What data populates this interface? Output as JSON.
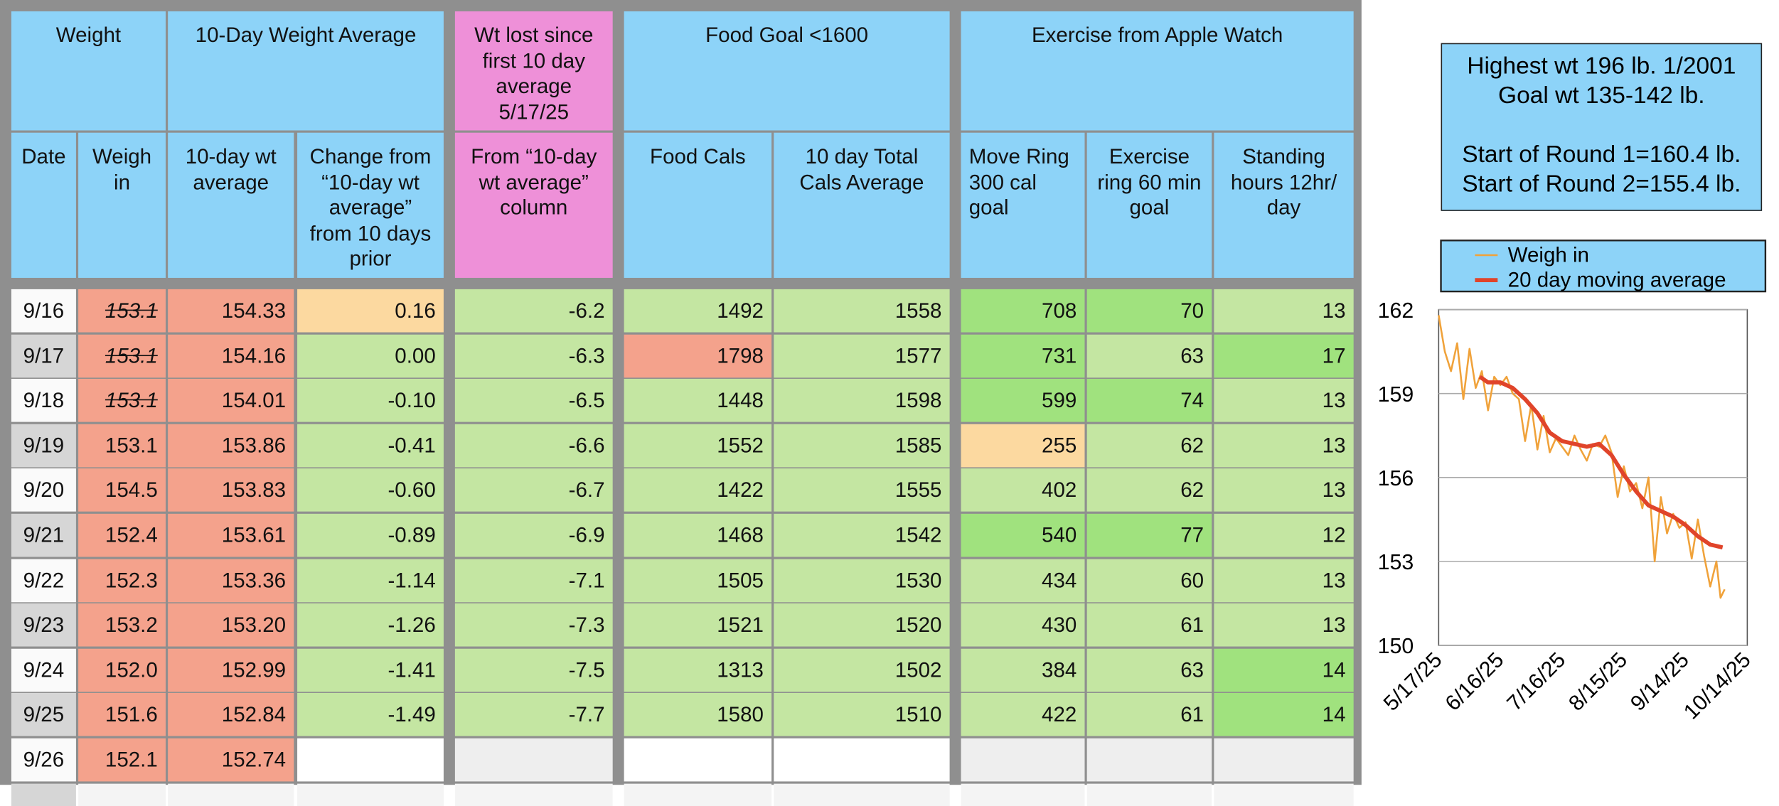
{
  "table": {
    "group_headers": [
      "Weight",
      "10-Day Weight Average",
      "Wt lost since first 10 day average 5/17/25",
      "Food Goal <1600",
      "Exercise from Apple Watch"
    ],
    "column_headers": [
      "Date",
      "Weigh in",
      "10-day wt average",
      "Change from “10-day wt average” from 10 days prior",
      "From “10-day wt average” column",
      "Food Cals",
      "10 day Total Cals Average",
      "Move Ring 300 cal goal",
      "Exercise ring 60 min goal",
      "Standing hours 12hr/ day"
    ],
    "rows": [
      [
        "9/16",
        "153.1",
        "154.33",
        "0.16",
        "-6.2",
        "1492",
        "1558",
        "708",
        "70",
        "13"
      ],
      [
        "9/17",
        "153.1",
        "154.16",
        "0.00",
        "-6.3",
        "1798",
        "1577",
        "731",
        "63",
        "17"
      ],
      [
        "9/18",
        "153.1",
        "154.01",
        "-0.10",
        "-6.5",
        "1448",
        "1598",
        "599",
        "74",
        "13"
      ],
      [
        "9/19",
        "153.1",
        "153.86",
        "-0.41",
        "-6.6",
        "1552",
        "1585",
        "255",
        "62",
        "13"
      ],
      [
        "9/20",
        "154.5",
        "153.83",
        "-0.60",
        "-6.7",
        "1422",
        "1555",
        "402",
        "62",
        "13"
      ],
      [
        "9/21",
        "152.4",
        "153.61",
        "-0.89",
        "-6.9",
        "1468",
        "1542",
        "540",
        "77",
        "12"
      ],
      [
        "9/22",
        "152.3",
        "153.36",
        "-1.14",
        "-7.1",
        "1505",
        "1530",
        "434",
        "60",
        "13"
      ],
      [
        "9/23",
        "153.2",
        "153.20",
        "-1.26",
        "-7.3",
        "1521",
        "1520",
        "430",
        "61",
        "13"
      ],
      [
        "9/24",
        "152.0",
        "152.99",
        "-1.41",
        "-7.5",
        "1313",
        "1502",
        "384",
        "63",
        "14"
      ],
      [
        "9/25",
        "151.6",
        "152.84",
        "-1.49",
        "-7.7",
        "1580",
        "1510",
        "422",
        "61",
        "14"
      ],
      [
        "9/26",
        "152.1",
        "152.74"
      ]
    ]
  },
  "info_box": {
    "lines": [
      "Highest wt 196 lb.  1/2001",
      "Goal wt 135-142 lb.",
      "Start of Round 1=160.4 lb.",
      "Start of Round 2=155.4 lb."
    ]
  },
  "chart_data": {
    "type": "line",
    "legend": "top",
    "grid": true,
    "xlim": [
      "5/17/25",
      "10/14/25"
    ],
    "xticks": [
      "5/17/25",
      "6/16/25",
      "7/16/25",
      "8/15/25",
      "9/14/25",
      "10/14/25"
    ],
    "ylim": [
      150,
      162
    ],
    "yticks": [
      150,
      153,
      156,
      159,
      162
    ],
    "series": [
      {
        "name": "Weigh in",
        "color": "#f0a23a",
        "x": [
          "5/17/25",
          "5/20/25",
          "5/23/25",
          "5/26/25",
          "5/29/25",
          "6/1/25",
          "6/4/25",
          "6/7/25",
          "6/10/25",
          "6/13/25",
          "6/16/25",
          "6/19/25",
          "6/22/25",
          "6/25/25",
          "6/28/25",
          "7/1/25",
          "7/4/25",
          "7/7/25",
          "7/10/25",
          "7/13/25",
          "7/16/25",
          "7/19/25",
          "7/22/25",
          "7/25/25",
          "7/28/25",
          "7/31/25",
          "8/3/25",
          "8/6/25",
          "8/9/25",
          "8/12/25",
          "8/15/25",
          "8/18/25",
          "8/21/25",
          "8/24/25",
          "8/27/25",
          "8/30/25",
          "9/2/25",
          "9/5/25",
          "9/8/25",
          "9/11/25",
          "9/14/25",
          "9/17/25",
          "9/20/25",
          "9/23/25",
          "9/26/25",
          "9/29/25",
          "10/1/25",
          "10/3/25"
        ],
        "values": [
          161.8,
          160.5,
          159.8,
          160.8,
          158.8,
          160.6,
          159.2,
          159.8,
          158.4,
          159.6,
          159.3,
          159.6,
          159.0,
          158.8,
          157.3,
          158.6,
          157.0,
          158.2,
          156.9,
          157.4,
          157.1,
          156.8,
          157.5,
          157.0,
          156.6,
          157.2,
          157.1,
          157.5,
          156.9,
          155.3,
          156.4,
          155.5,
          155.8,
          154.9,
          156.0,
          153.0,
          155.3,
          154.0,
          154.7,
          154.2,
          154.4,
          153.1,
          154.5,
          153.2,
          152.1,
          153.0,
          151.7,
          152.0
        ]
      },
      {
        "name": "20 day moving average",
        "color": "#e0442a",
        "x": [
          "6/6/25",
          "6/10/25",
          "6/16/25",
          "6/22/25",
          "6/28/25",
          "7/4/25",
          "7/10/25",
          "7/16/25",
          "7/22/25",
          "7/28/25",
          "8/3/25",
          "8/9/25",
          "8/15/25",
          "8/21/25",
          "8/27/25",
          "9/2/25",
          "9/8/25",
          "9/14/25",
          "9/20/25",
          "9/26/25",
          "10/2/25"
        ],
        "values": [
          159.6,
          159.4,
          159.4,
          159.2,
          158.8,
          158.3,
          157.6,
          157.3,
          157.2,
          157.1,
          157.2,
          156.8,
          156.1,
          155.5,
          155.0,
          154.8,
          154.6,
          154.3,
          153.9,
          153.6,
          153.5
        ]
      }
    ]
  }
}
